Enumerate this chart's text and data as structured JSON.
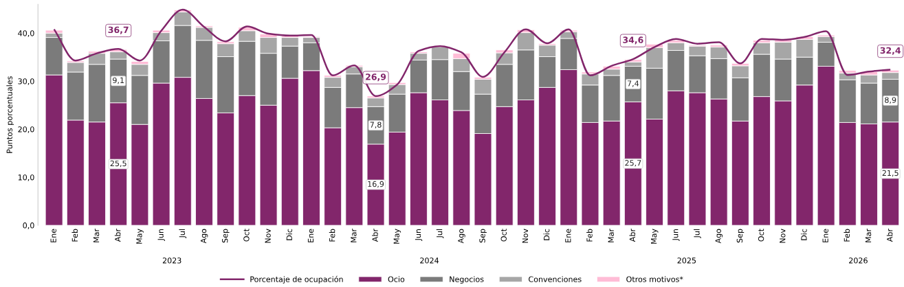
{
  "chart_data": {
    "type": "bar",
    "stacked": true,
    "ylabel": "Puntos porcentuales",
    "categories": [
      "Ene",
      "Feb",
      "Mar",
      "Abr",
      "May",
      "Jun",
      "Jul",
      "Ago",
      "Sep",
      "Oct",
      "Nov",
      "Dic",
      "Ene",
      "Feb",
      "Mar",
      "Abr",
      "May",
      "Jun",
      "Jul",
      "Ago",
      "Sep",
      "Oct",
      "Nov",
      "Dic",
      "Ene",
      "Feb",
      "Mar",
      "Abr",
      "May",
      "Jun",
      "Jul",
      "Ago",
      "Sep",
      "Oct",
      "Nov",
      "Dic",
      "Ene",
      "Feb",
      "Mar",
      "Abr"
    ],
    "series": [
      {
        "name": "Porcentaje de ocupación",
        "type": "line",
        "color": "#82266b",
        "values": [
          40.8,
          34.3,
          35.8,
          36.7,
          34.3,
          40.5,
          44.9,
          41.3,
          38.3,
          41.4,
          39.9,
          39.5,
          39.6,
          31.2,
          33.3,
          26.9,
          29.3,
          36.3,
          37.3,
          36.0,
          30.9,
          36.0,
          40.8,
          37.9,
          40.8,
          31.2,
          33.2,
          34.6,
          37.1,
          38.8,
          37.8,
          38.1,
          33.7,
          38.8,
          38.6,
          39.2,
          40.4,
          31.3,
          32.0,
          32.4
        ],
        "value_labels": [
          null,
          null,
          null,
          "36,7",
          null,
          null,
          null,
          null,
          null,
          null,
          null,
          null,
          null,
          null,
          null,
          "26,9",
          null,
          null,
          null,
          null,
          null,
          null,
          null,
          null,
          null,
          null,
          null,
          "34,6",
          null,
          null,
          null,
          null,
          null,
          null,
          null,
          null,
          null,
          null,
          null,
          "32,4"
        ]
      },
      {
        "name": "Ocio",
        "color": "#82266b",
        "values": [
          31.3,
          21.9,
          21.5,
          25.5,
          21.0,
          29.6,
          30.8,
          26.4,
          23.4,
          27.0,
          25.0,
          30.6,
          32.2,
          20.3,
          24.5,
          16.9,
          19.4,
          27.6,
          26.1,
          23.9,
          19.1,
          24.7,
          26.1,
          28.7,
          32.4,
          21.4,
          21.7,
          25.7,
          22.1,
          28.0,
          27.6,
          26.3,
          21.7,
          26.8,
          25.9,
          29.2,
          33.1,
          21.4,
          21.1,
          21.5
        ],
        "value_labels": [
          null,
          null,
          null,
          "25,5",
          null,
          null,
          null,
          null,
          null,
          null,
          null,
          null,
          null,
          null,
          null,
          "16,9",
          null,
          null,
          null,
          null,
          null,
          null,
          null,
          null,
          null,
          null,
          null,
          "25,7",
          null,
          null,
          null,
          null,
          null,
          null,
          null,
          null,
          null,
          null,
          null,
          "21,5"
        ]
      },
      {
        "name": "Negocios",
        "color": "#7b7b7b",
        "values": [
          7.8,
          10.0,
          12.0,
          9.1,
          10.2,
          8.8,
          10.8,
          12.1,
          11.7,
          11.3,
          10.8,
          6.7,
          5.8,
          8.4,
          7.0,
          7.8,
          7.9,
          6.8,
          8.4,
          8.1,
          8.2,
          8.8,
          10.4,
          6.4,
          6.5,
          7.8,
          9.5,
          7.4,
          10.6,
          8.4,
          7.7,
          8.4,
          9.0,
          8.8,
          8.7,
          5.8,
          5.0,
          8.9,
          8.5,
          8.9
        ],
        "value_labels": [
          null,
          null,
          null,
          "9,1",
          null,
          null,
          null,
          null,
          null,
          null,
          null,
          null,
          null,
          null,
          null,
          "7,8",
          null,
          null,
          null,
          null,
          null,
          null,
          null,
          null,
          null,
          null,
          null,
          "7,4",
          null,
          null,
          null,
          null,
          null,
          null,
          null,
          null,
          null,
          null,
          null,
          "8,9"
        ]
      },
      {
        "name": "Convenciones",
        "color": "#a6a6a6",
        "values": [
          0.9,
          2.0,
          2.3,
          1.5,
          2.3,
          1.7,
          2.8,
          2.7,
          2.7,
          2.2,
          3.3,
          1.8,
          1.1,
          2.1,
          1.5,
          1.8,
          2.0,
          1.4,
          2.6,
          2.7,
          3.1,
          2.4,
          3.6,
          2.4,
          1.4,
          2.3,
          1.3,
          0.9,
          4.3,
          1.6,
          2.0,
          2.4,
          2.5,
          2.4,
          3.5,
          3.7,
          1.2,
          1.4,
          1.7,
          1.4
        ]
      },
      {
        "name": "Otros motivos*",
        "color": "#ffbcd6",
        "values": [
          0.6,
          0.3,
          0.4,
          0.5,
          0.6,
          0.5,
          0.4,
          0.3,
          0.4,
          0.7,
          0.7,
          0.3,
          0.2,
          0.4,
          0.3,
          0.4,
          0.4,
          0.3,
          null,
          1.1,
          0.4,
          0.6,
          0.6,
          0.3,
          0.3,
          0.4,
          0.6,
          0.5,
          0.7,
          0.5,
          0.2,
          0.4,
          0.5,
          0.5,
          0.5,
          0.6,
          0.3,
          0.5,
          0.7,
          0.5
        ]
      }
    ],
    "ylim": [
      0,
      46
    ],
    "yticks": [
      {
        "value": 0,
        "label": "0,0"
      },
      {
        "value": 10,
        "label": "10,0"
      },
      {
        "value": 20,
        "label": "20,0"
      },
      {
        "value": 30,
        "label": "30,0"
      },
      {
        "value": 40,
        "label": "40,0"
      }
    ],
    "annotations": [
      "2023",
      "2024",
      "2025",
      "2026"
    ],
    "grid": false,
    "legend": "bottom"
  }
}
